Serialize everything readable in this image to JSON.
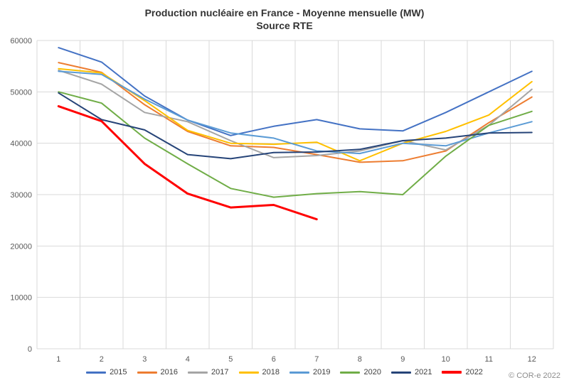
{
  "header": {
    "title": "Production nucléaire en France - Moyenne mensuelle (MW)",
    "subtitle": "Source RTE"
  },
  "footer": {
    "copyright": "© COR-e 2022"
  },
  "chart_data": {
    "type": "line",
    "title": "Production nucléaire en France - Moyenne mensuelle (MW)",
    "subtitle": "Source RTE",
    "xlabel": "",
    "ylabel": "",
    "ylim": [
      0,
      60000
    ],
    "ytick": 10000,
    "grid": true,
    "legend_position": "bottom",
    "grid_color": "#d9d9d9",
    "axis_label_color": "#595959",
    "categories": [
      "1",
      "2",
      "3",
      "4",
      "5",
      "6",
      "7",
      "8",
      "9",
      "10",
      "11",
      "12"
    ],
    "series": [
      {
        "name": "2015",
        "color": "#4472C4",
        "width": 2,
        "values": [
          58600,
          55800,
          49200,
          44500,
          41500,
          43300,
          44600,
          42800,
          42400,
          46000,
          50000,
          54000
        ]
      },
      {
        "name": "2016",
        "color": "#ED7D31",
        "width": 2,
        "values": [
          55700,
          53800,
          47500,
          42300,
          39500,
          39200,
          37800,
          36300,
          36600,
          38500,
          44000,
          49000
        ]
      },
      {
        "name": "2017",
        "color": "#A5A5A5",
        "width": 2,
        "values": [
          54200,
          51500,
          46000,
          44200,
          40500,
          37200,
          37600,
          38500,
          40500,
          38700,
          43500,
          50500
        ]
      },
      {
        "name": "2018",
        "color": "#FFC000",
        "width": 2,
        "values": [
          54500,
          53700,
          48300,
          42500,
          40000,
          39800,
          40200,
          36600,
          40000,
          42300,
          45500,
          52000
        ]
      },
      {
        "name": "2019",
        "color": "#5B9BD5",
        "width": 2,
        "values": [
          54000,
          53400,
          48600,
          44500,
          42000,
          41000,
          38500,
          38000,
          40000,
          39500,
          42000,
          44200
        ]
      },
      {
        "name": "2020",
        "color": "#70AD47",
        "width": 2,
        "values": [
          50000,
          47800,
          41000,
          36000,
          31200,
          29500,
          30200,
          30600,
          30000,
          37500,
          43500,
          46200
        ]
      },
      {
        "name": "2021",
        "color": "#264478",
        "width": 2,
        "values": [
          49800,
          44600,
          42600,
          37800,
          37000,
          38200,
          38300,
          38800,
          40500,
          41000,
          42000,
          42100
        ]
      },
      {
        "name": "2022",
        "color": "#FF0000",
        "width": 3,
        "values": [
          47200,
          44300,
          36000,
          30200,
          27500,
          28000,
          25200
        ]
      }
    ]
  }
}
